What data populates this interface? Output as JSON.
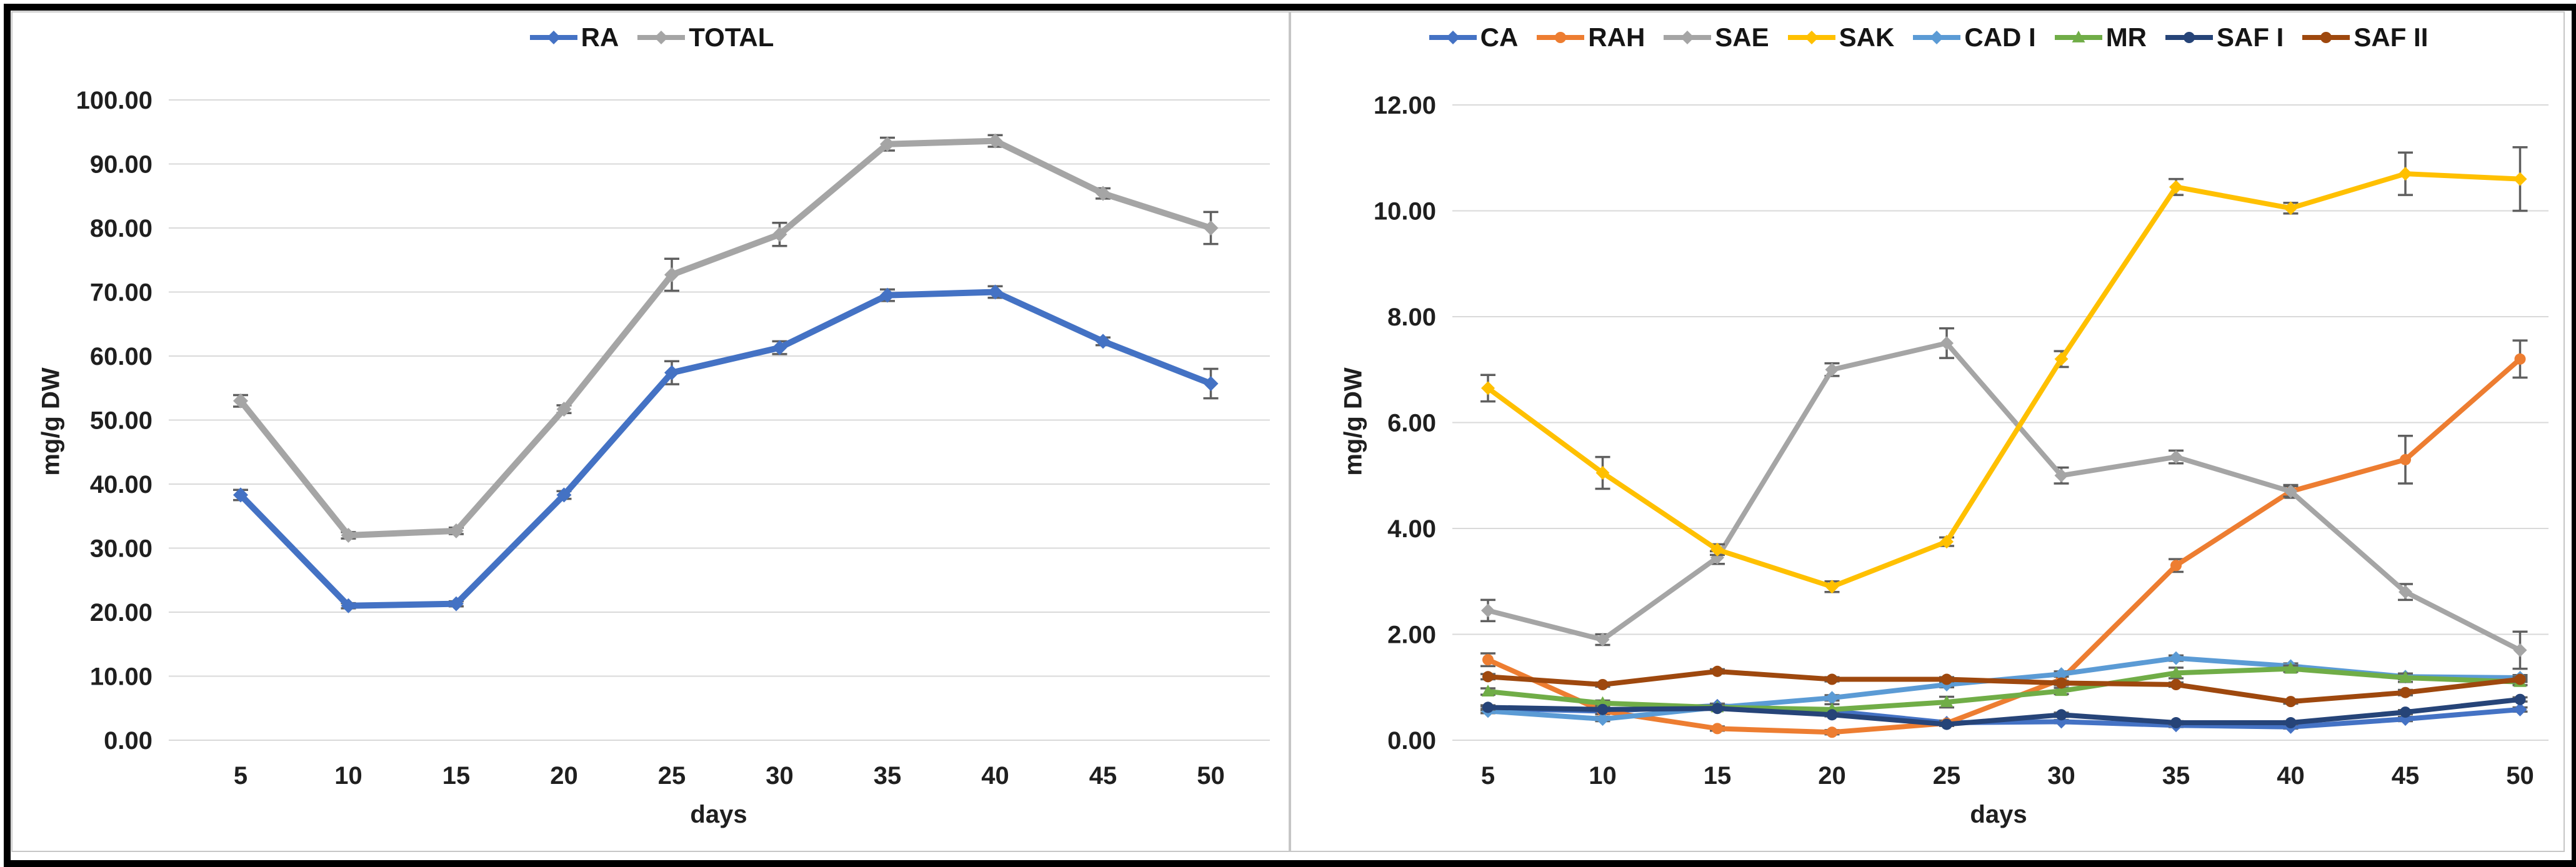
{
  "figure": {
    "background": "#ffffff",
    "frame_color": "#000000",
    "panel_border_color": "#c6c6c6",
    "grid_color": "#d9d9d9",
    "text_color": "#1f1f1f",
    "error_bar_color": "#5f5f5f"
  },
  "chart_data": [
    {
      "type": "line",
      "title": "",
      "xlabel": "days",
      "ylabel": "mg/g DW",
      "x": [
        5,
        10,
        15,
        20,
        25,
        30,
        35,
        40,
        45,
        50
      ],
      "ylim": [
        0,
        100
      ],
      "ytick_step": 10,
      "ytick_decimals": 2,
      "grid": true,
      "legend_position": "top",
      "series": [
        {
          "name": "RA",
          "color": "#4472C4",
          "marker": "diamond",
          "values": [
            38.3,
            21.0,
            21.3,
            38.3,
            57.4,
            61.3,
            69.5,
            70.0,
            62.3,
            55.7
          ],
          "errors": [
            0.8,
            0.4,
            0.4,
            0.6,
            1.8,
            1.0,
            0.9,
            0.9,
            0.6,
            2.3
          ]
        },
        {
          "name": "TOTAL",
          "color": "#A5A5A5",
          "marker": "diamond",
          "values": [
            53.0,
            32.0,
            32.7,
            51.7,
            72.7,
            79.0,
            93.1,
            93.6,
            85.4,
            80.0
          ],
          "errors": [
            0.9,
            0.5,
            0.5,
            0.6,
            2.5,
            1.8,
            1.0,
            0.9,
            0.8,
            2.5
          ]
        }
      ]
    },
    {
      "type": "line",
      "title": "",
      "xlabel": "days",
      "ylabel": "mg/g DW",
      "x": [
        5,
        10,
        15,
        20,
        25,
        30,
        35,
        40,
        45,
        50
      ],
      "ylim": [
        0,
        12
      ],
      "ytick_step": 2,
      "ytick_decimals": 2,
      "grid": true,
      "legend_position": "top",
      "series": [
        {
          "name": "CA",
          "color": "#4472C4",
          "marker": "diamond",
          "values": [
            0.6,
            0.55,
            0.65,
            0.55,
            0.33,
            0.35,
            0.28,
            0.25,
            0.4,
            0.58
          ],
          "errors": [
            0.04,
            0.04,
            0.04,
            0.04,
            0.03,
            0.03,
            0.03,
            0.03,
            0.04,
            0.04
          ]
        },
        {
          "name": "RAH",
          "color": "#ED7D31",
          "marker": "circle",
          "values": [
            1.52,
            0.55,
            0.22,
            0.15,
            0.32,
            1.15,
            3.3,
            4.7,
            5.3,
            7.2
          ],
          "errors": [
            0.12,
            0.06,
            0.04,
            0.04,
            0.05,
            0.08,
            0.12,
            0.12,
            0.45,
            0.35
          ]
        },
        {
          "name": "SAE",
          "color": "#A5A5A5",
          "marker": "diamond",
          "values": [
            2.45,
            1.9,
            3.45,
            7.0,
            7.5,
            5.0,
            5.35,
            4.7,
            2.8,
            1.7
          ],
          "errors": [
            0.2,
            0.1,
            0.12,
            0.12,
            0.28,
            0.15,
            0.12,
            0.1,
            0.15,
            0.35
          ]
        },
        {
          "name": "SAK",
          "color": "#FFC000",
          "marker": "diamond",
          "values": [
            6.65,
            5.05,
            3.6,
            2.9,
            3.75,
            7.2,
            10.45,
            10.05,
            10.7,
            10.6
          ],
          "errors": [
            0.25,
            0.3,
            0.1,
            0.1,
            0.08,
            0.15,
            0.15,
            0.1,
            0.4,
            0.6
          ]
        },
        {
          "name": "CAD I",
          "color": "#5B9BD5",
          "marker": "diamond",
          "values": [
            0.55,
            0.4,
            0.62,
            0.8,
            1.05,
            1.25,
            1.55,
            1.4,
            1.2,
            1.18
          ],
          "errors": [
            0.04,
            0.04,
            0.04,
            0.05,
            0.05,
            0.05,
            0.05,
            0.05,
            0.05,
            0.05
          ]
        },
        {
          "name": "MR",
          "color": "#70AD47",
          "marker": "triangle",
          "values": [
            0.92,
            0.7,
            0.62,
            0.58,
            0.72,
            0.93,
            1.27,
            1.35,
            1.18,
            1.1
          ],
          "errors": [
            0.06,
            0.05,
            0.05,
            0.1,
            0.1,
            0.06,
            0.1,
            0.06,
            0.08,
            0.06
          ]
        },
        {
          "name": "SAF I",
          "color": "#264478",
          "marker": "circle",
          "values": [
            0.62,
            0.58,
            0.6,
            0.48,
            0.3,
            0.48,
            0.33,
            0.33,
            0.53,
            0.77
          ],
          "errors": [
            0.04,
            0.03,
            0.03,
            0.03,
            0.03,
            0.04,
            0.03,
            0.03,
            0.04,
            0.04
          ]
        },
        {
          "name": "SAF II",
          "color": "#9E480E",
          "marker": "circle",
          "values": [
            1.2,
            1.05,
            1.3,
            1.15,
            1.15,
            1.08,
            1.05,
            0.73,
            0.9,
            1.15
          ],
          "errors": [
            0.05,
            0.04,
            0.04,
            0.04,
            0.04,
            0.04,
            0.04,
            0.04,
            0.05,
            0.05
          ]
        }
      ]
    }
  ]
}
